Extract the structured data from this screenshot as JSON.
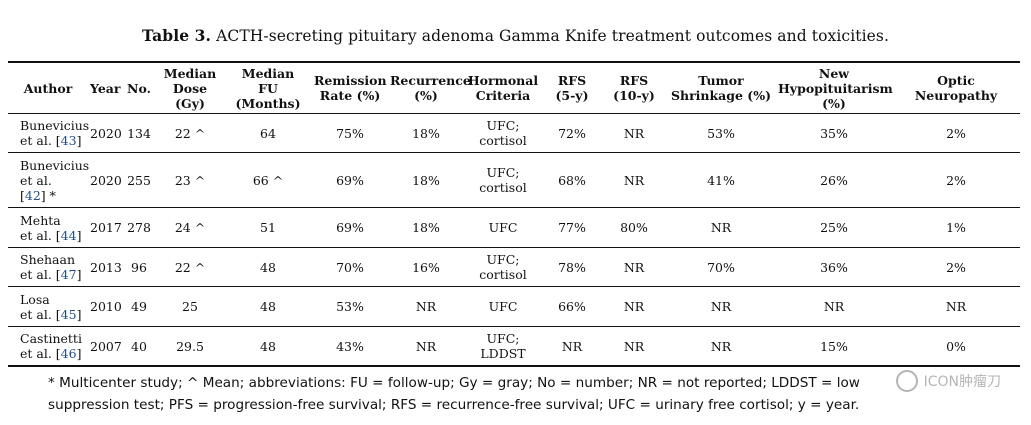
{
  "caption": {
    "label": "Table 3.",
    "text": "ACTH-secreting pituitary adenoma Gamma Knife treatment outcomes and toxicities."
  },
  "headers": [
    {
      "line1": "Author",
      "line2": ""
    },
    {
      "line1": "Year",
      "line2": ""
    },
    {
      "line1": "No.",
      "line2": ""
    },
    {
      "line1": "Median",
      "line2": "Dose",
      "line3": "(Gy)"
    },
    {
      "line1": "Median",
      "line2": "FU",
      "line3": "(Months)"
    },
    {
      "line1": "Remission",
      "line2": "Rate (%)"
    },
    {
      "line1": "Recurrence",
      "line2": "(%)"
    },
    {
      "line1": "Hormonal",
      "line2": "Criteria"
    },
    {
      "line1": "RFS",
      "line2": "(5-y)"
    },
    {
      "line1": "RFS",
      "line2": "(10-y)"
    },
    {
      "line1": "Tumor",
      "line2": "Shrinkage (%)"
    },
    {
      "line1": "New",
      "line2": "Hypopituitarism",
      "line3": "(%)"
    },
    {
      "line1": "Optic",
      "line2": "Neuropathy"
    }
  ],
  "rows": [
    {
      "author_l1": "Bunevicius",
      "author_l2": "et al. [",
      "ref": "43",
      "author_l3": "]",
      "author_suffix": "",
      "year": "2020",
      "no": "134",
      "dose": "22 ^",
      "fu": "64",
      "remission": "75%",
      "recurrence": "18%",
      "criteria_l1": "UFC;",
      "criteria_l2": "cortisol",
      "rfs5": "72%",
      "rfs10": "NR",
      "shrink": "53%",
      "hypo": "35%",
      "optic": "2%"
    },
    {
      "author_l1": "Bunevicius",
      "author_l2": "et al.",
      "ref": "42",
      "author_l3": "] *",
      "author_suffix": "",
      "year": "2020",
      "no": "255",
      "dose": "23 ^",
      "fu": "66 ^",
      "remission": "69%",
      "recurrence": "18%",
      "criteria_l1": "UFC;",
      "criteria_l2": "cortisol",
      "rfs5": "68%",
      "rfs10": "NR",
      "shrink": "41%",
      "hypo": "26%",
      "optic": "2%"
    },
    {
      "author_l1": "Mehta",
      "author_l2": "et al. [",
      "ref": "44",
      "author_l3": "]",
      "author_suffix": "",
      "year": "2017",
      "no": "278",
      "dose": "24 ^",
      "fu": "51",
      "remission": "69%",
      "recurrence": "18%",
      "criteria_l1": "UFC",
      "criteria_l2": "",
      "rfs5": "77%",
      "rfs10": "80%",
      "shrink": "NR",
      "hypo": "25%",
      "optic": "1%"
    },
    {
      "author_l1": "Shehaan",
      "author_l2": "et al. [",
      "ref": "47",
      "author_l3": "]",
      "author_suffix": "",
      "year": "2013",
      "no": "96",
      "dose": "22 ^",
      "fu": "48",
      "remission": "70%",
      "recurrence": "16%",
      "criteria_l1": "UFC;",
      "criteria_l2": "cortisol",
      "rfs5": "78%",
      "rfs10": "NR",
      "shrink": "70%",
      "hypo": "36%",
      "optic": "2%"
    },
    {
      "author_l1": "Losa",
      "author_l2": "et al. [",
      "ref": "45",
      "author_l3": "]",
      "author_suffix": "",
      "year": "2010",
      "no": "49",
      "dose": "25",
      "fu": "48",
      "remission": "53%",
      "recurrence": "NR",
      "criteria_l1": "UFC",
      "criteria_l2": "",
      "rfs5": "66%",
      "rfs10": "NR",
      "shrink": "NR",
      "hypo": "NR",
      "optic": "NR"
    },
    {
      "author_l1": "Castinetti",
      "author_l2": "et al. [",
      "ref": "46",
      "author_l3": "]",
      "author_suffix": "",
      "year": "2007",
      "no": "40",
      "dose": "29.5",
      "fu": "48",
      "remission": "43%",
      "recurrence": "NR",
      "criteria_l1": "UFC;",
      "criteria_l2": "LDDST",
      "rfs5": "NR",
      "rfs10": "NR",
      "shrink": "NR",
      "hypo": "15%",
      "optic": "0%"
    }
  ],
  "footnote": {
    "line1": "* Multicenter study; ^ Mean; abbreviations: FU = follow-up; Gy = gray; No = number; NR = not reported; LDDST = low",
    "line2": "suppression test; PFS = progression-free survival; RFS = recurrence-free survival; UFC = urinary free cortisol; y = year."
  },
  "watermark": {
    "text": "ICON肿瘤刀"
  }
}
